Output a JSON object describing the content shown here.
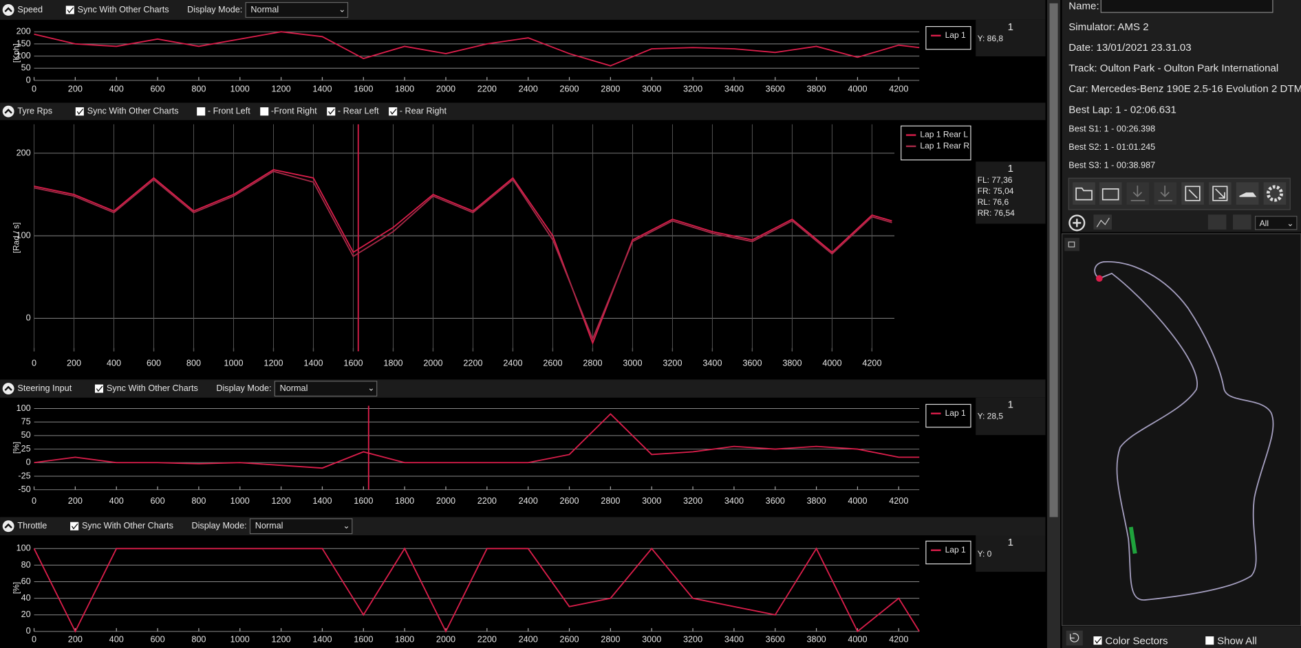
{
  "chart_data": [
    {
      "type": "line",
      "title": "Speed",
      "y_label": "[Kph]",
      "grid": true,
      "xgrid": false,
      "x": [
        0,
        200,
        400,
        600,
        800,
        1000,
        1200,
        1400,
        1600,
        1800,
        2000,
        2200,
        2400,
        2600,
        2800,
        3000,
        3200,
        3400,
        3600,
        3800,
        4000,
        4200,
        4300
      ],
      "series": [
        {
          "name": "Lap 1",
          "color": "#dc1e4b",
          "values": [
            190,
            150,
            140,
            170,
            140,
            170,
            200,
            180,
            90,
            140,
            110,
            150,
            175,
            110,
            60,
            130,
            135,
            130,
            115,
            140,
            95,
            145,
            135
          ]
        }
      ],
      "xlim": [
        0,
        4300
      ],
      "xticks": [
        0,
        200,
        400,
        600,
        800,
        1000,
        1200,
        1400,
        1600,
        1800,
        2000,
        2200,
        2400,
        2600,
        2800,
        3000,
        3200,
        3400,
        3600,
        3800,
        4000,
        4200
      ],
      "ylim": [
        0,
        225
      ],
      "yticks": [
        0,
        50,
        100,
        150,
        200
      ]
    },
    {
      "type": "line",
      "title": "Tyre Rps",
      "y_label": "[Rad / s]",
      "grid": true,
      "xgrid": true,
      "cursor": 1625,
      "x": [
        0,
        200,
        400,
        600,
        800,
        1000,
        1200,
        1400,
        1600,
        1800,
        2000,
        2200,
        2400,
        2600,
        2800,
        3000,
        3200,
        3400,
        3600,
        3800,
        4000,
        4200,
        4300
      ],
      "series": [
        {
          "name": "Lap 1 Rear L",
          "color": "#dc1e4b",
          "values": [
            160,
            150,
            130,
            170,
            130,
            150,
            180,
            170,
            80,
            110,
            150,
            130,
            170,
            100,
            -30,
            95,
            120,
            105,
            95,
            120,
            80,
            125,
            118
          ]
        },
        {
          "name": "Lap 1 Rear R",
          "color": "#a82a48",
          "values": [
            158,
            148,
            128,
            168,
            128,
            148,
            178,
            165,
            75,
            105,
            148,
            128,
            168,
            95,
            -25,
            93,
            118,
            103,
            93,
            118,
            78,
            123,
            116
          ]
        }
      ],
      "xlim": [
        0,
        4300
      ],
      "xticks": [
        0,
        200,
        400,
        600,
        800,
        1000,
        1200,
        1400,
        1600,
        1800,
        2000,
        2200,
        2400,
        2600,
        2800,
        3000,
        3200,
        3400,
        3600,
        3800,
        4000,
        4200
      ],
      "ylim": [
        -40,
        235
      ],
      "yticks": [
        0,
        100,
        200
      ]
    },
    {
      "type": "line",
      "title": "Steering Input",
      "y_label": "[%]",
      "grid": true,
      "xgrid": false,
      "cursor": 1625,
      "x": [
        0,
        200,
        400,
        600,
        800,
        1000,
        1200,
        1400,
        1600,
        1800,
        2000,
        2200,
        2400,
        2600,
        2800,
        3000,
        3200,
        3400,
        3600,
        3800,
        4000,
        4200,
        4300
      ],
      "series": [
        {
          "name": "Lap 1",
          "color": "#dc1e4b",
          "values": [
            0,
            10,
            0,
            0,
            -2,
            0,
            -5,
            -10,
            20,
            0,
            0,
            0,
            0,
            15,
            90,
            15,
            20,
            30,
            25,
            30,
            25,
            10,
            10
          ]
        }
      ],
      "xlim": [
        0,
        4300
      ],
      "xticks": [
        0,
        200,
        400,
        600,
        800,
        1000,
        1200,
        1400,
        1600,
        1800,
        2000,
        2200,
        2400,
        2600,
        2800,
        3000,
        3200,
        3400,
        3600,
        3800,
        4000,
        4200
      ],
      "ylim": [
        -50,
        105
      ],
      "yticks": [
        -50,
        -25,
        0,
        25,
        50,
        75,
        100
      ]
    },
    {
      "type": "line",
      "title": "Throttle",
      "y_label": "[%]",
      "grid": true,
      "xgrid": false,
      "x": [
        0,
        200,
        400,
        600,
        800,
        1000,
        1200,
        1400,
        1600,
        1800,
        2000,
        2200,
        2400,
        2600,
        2800,
        3000,
        3200,
        3400,
        3600,
        3800,
        4000,
        4200,
        4300
      ],
      "series": [
        {
          "name": "Lap 1",
          "color": "#dc1e4b",
          "values": [
            100,
            0,
            100,
            100,
            100,
            100,
            100,
            100,
            20,
            100,
            0,
            100,
            100,
            30,
            40,
            100,
            40,
            30,
            20,
            100,
            0,
            40,
            0
          ]
        }
      ],
      "xlim": [
        0,
        4300
      ],
      "xticks": [
        0,
        200,
        400,
        600,
        800,
        1000,
        1200,
        1400,
        1600,
        1800,
        2000,
        2200,
        2400,
        2600,
        2800,
        3000,
        3200,
        3400,
        3600,
        3800,
        4000,
        4200
      ],
      "ylim": [
        0,
        105
      ],
      "yticks": [
        0,
        20,
        40,
        60,
        80,
        100
      ]
    }
  ],
  "ui": {
    "panels": [
      {
        "sync": "Sync With Other Charts",
        "display_mode_label": "Display Mode:",
        "display_mode": "Normal",
        "cursor_lap": "1",
        "readout": [
          "Y: 86,8"
        ]
      },
      {
        "sync": "Sync With Other Charts",
        "checkboxes": [
          "- Front Left",
          "-Front Right",
          "- Rear Left",
          "- Rear Right"
        ],
        "cursor_lap": "1",
        "readout": [
          "FL: 77,36",
          "FR: 75,04",
          "RL: 76,6",
          "RR: 76,54"
        ]
      },
      {
        "sync": "Sync With Other Charts",
        "display_mode_label": "Display Mode:",
        "display_mode": "Normal",
        "cursor_lap": "1",
        "readout": [
          "Y: 28,5"
        ]
      },
      {
        "sync": "Sync With Other Charts",
        "display_mode_label": "Display Mode:",
        "display_mode": "Normal",
        "cursor_lap": "1",
        "readout": [
          "Y: 0"
        ]
      }
    ],
    "session": {
      "name_label": "Name:",
      "simulator": "Simulator: AMS 2",
      "date": "Date: 13/01/2021 23.31.03",
      "track": "Track: Oulton Park - Oulton Park International",
      "car": "Car: Mercedes-Benz 190E 2.5-16 Evolution 2 DTM",
      "best_lap": "Best Lap: 1 - 02:06.631",
      "best_s1": "Best S1: 1 - 00:26.398",
      "best_s2": "Best S2: 1 - 01:01.245",
      "best_s3": "Best S3: 1 - 00:38.987"
    },
    "filter": "All",
    "color_sectors": "Color Sectors",
    "show_all": "Show All"
  }
}
